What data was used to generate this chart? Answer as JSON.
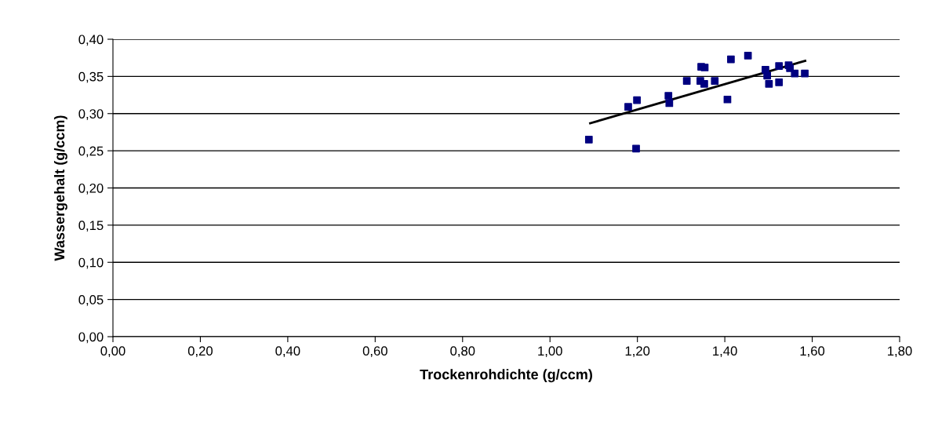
{
  "chart_data": {
    "type": "scatter",
    "xlabel": "Trockenrohdichte (g/ccm)",
    "ylabel": "Wassergehalt (g/ccm)",
    "xlim": [
      0,
      1.8
    ],
    "ylim": [
      0,
      0.4
    ],
    "xticks": [
      {
        "value": 0,
        "label": "0,00"
      },
      {
        "value": 0.2,
        "label": "0,20"
      },
      {
        "value": 0.4,
        "label": "0,40"
      },
      {
        "value": 0.6,
        "label": "0,60"
      },
      {
        "value": 0.8,
        "label": "0,80"
      },
      {
        "value": 1.0,
        "label": "1,00"
      },
      {
        "value": 1.2,
        "label": "1,20"
      },
      {
        "value": 1.4,
        "label": "1,40"
      },
      {
        "value": 1.6,
        "label": "1,60"
      },
      {
        "value": 1.8,
        "label": "1,80"
      }
    ],
    "yticks": [
      {
        "value": 0,
        "label": "0,00"
      },
      {
        "value": 0.05,
        "label": "0,05"
      },
      {
        "value": 0.1,
        "label": "0,10"
      },
      {
        "value": 0.15,
        "label": "0,15"
      },
      {
        "value": 0.2,
        "label": "0,20"
      },
      {
        "value": 0.25,
        "label": "0,25"
      },
      {
        "value": 0.3,
        "label": "0,30"
      },
      {
        "value": 0.35,
        "label": "0,35"
      },
      {
        "value": 0.4,
        "label": "0,40"
      }
    ],
    "grid": "y",
    "legend": false,
    "series": [
      {
        "marker": "square",
        "color": "#000080",
        "x": [
          1.089,
          1.179,
          1.199,
          1.197,
          1.271,
          1.273,
          1.313,
          1.344,
          1.346,
          1.354,
          1.353,
          1.377,
          1.406,
          1.414,
          1.453,
          1.493,
          1.497,
          1.501,
          1.524,
          1.524,
          1.546,
          1.549,
          1.56,
          1.583
        ],
        "values": [
          0.265,
          0.309,
          0.318,
          0.253,
          0.324,
          0.314,
          0.344,
          0.344,
          0.363,
          0.362,
          0.34,
          0.344,
          0.319,
          0.373,
          0.378,
          0.359,
          0.351,
          0.34,
          0.342,
          0.364,
          0.365,
          0.361,
          0.354,
          0.354
        ]
      },
      {
        "type": "line",
        "marker": "none",
        "color": "#000000",
        "x": [
          1.092,
          1.584
        ],
        "values": [
          0.287,
          0.371
        ]
      }
    ]
  }
}
